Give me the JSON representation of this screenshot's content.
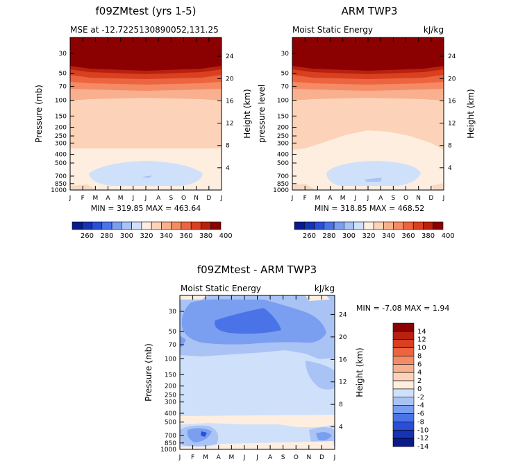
{
  "chart_data": [
    {
      "type": "heatmap",
      "title": "f09ZMtest (yrs 1-5)",
      "subtitle_left": "MSE at -12.7225130890052,131.25",
      "subtitle_right": "",
      "ylabel": "Pressure (mb)",
      "ylabel_right": "Height (km)",
      "months": [
        "J",
        "F",
        "M",
        "A",
        "M",
        "J",
        "J",
        "A",
        "S",
        "O",
        "N",
        "D",
        "J"
      ],
      "pressure_ticks": [
        30,
        50,
        70,
        100,
        150,
        200,
        250,
        300,
        400,
        500,
        700,
        850,
        1000
      ],
      "height_ticks": [
        24,
        20,
        16,
        12,
        8,
        4
      ],
      "stat_text": "MIN = 319.85  MAX = 463.64"
    },
    {
      "type": "heatmap",
      "title": "ARM TWP3",
      "subtitle_left": "Moist Static Energy",
      "subtitle_right": "kJ/kg",
      "ylabel": "pressure level",
      "ylabel_right": "Height (km)",
      "months": [
        "J",
        "F",
        "M",
        "A",
        "M",
        "J",
        "J",
        "A",
        "S",
        "O",
        "N",
        "D",
        "J"
      ],
      "pressure_ticks": [
        30,
        50,
        70,
        100,
        150,
        200,
        250,
        300,
        400,
        500,
        700,
        850,
        1000
      ],
      "height_ticks": [
        24,
        20,
        16,
        12,
        8,
        4
      ],
      "stat_text": "MIN = 318.85  MAX = 468.52"
    },
    {
      "type": "heatmap",
      "title": "f09ZMtest - ARM TWP3",
      "subtitle_left": "Moist Static Energy",
      "subtitle_right": "kJ/kg",
      "ylabel": "Pressure (mb)",
      "ylabel_right": "Height (km)",
      "months": [
        "J",
        "F",
        "M",
        "A",
        "M",
        "J",
        "J",
        "A",
        "S",
        "O",
        "N",
        "D",
        "J"
      ],
      "pressure_ticks": [
        30,
        50,
        70,
        100,
        150,
        200,
        250,
        300,
        400,
        500,
        700,
        850,
        1000
      ],
      "height_ticks": [
        24,
        20,
        16,
        12,
        8,
        4
      ],
      "stat_text": "MIN =   -7.08  MAX =    1.94"
    }
  ],
  "colorbar_top": {
    "labels": [
      "260",
      "280",
      "300",
      "320",
      "340",
      "360",
      "380",
      "400"
    ],
    "colors": [
      "#0a1a8a",
      "#1632b5",
      "#2a4fd6",
      "#4a73e8",
      "#7a9ef0",
      "#a9c3f5",
      "#cfe0fa",
      "#fdeee0",
      "#fcd3b9",
      "#f8b08e",
      "#f48b65",
      "#ec6440",
      "#d9401f",
      "#b82010",
      "#8b0000"
    ]
  },
  "colorbar_diff": {
    "labels": [
      "14",
      "12",
      "10",
      "8",
      "6",
      "4",
      "2",
      "0",
      "-2",
      "-4",
      "-6",
      "-8",
      "-10",
      "-12",
      "-14"
    ],
    "colors": [
      "#8b0000",
      "#b82010",
      "#d9401f",
      "#ec6440",
      "#f48b65",
      "#f8b08e",
      "#fcd3b9",
      "#fdeee0",
      "#cfe0fa",
      "#a9c3f5",
      "#7a9ef0",
      "#4a73e8",
      "#2a4fd6",
      "#1632b5",
      "#0a1a8a"
    ]
  }
}
